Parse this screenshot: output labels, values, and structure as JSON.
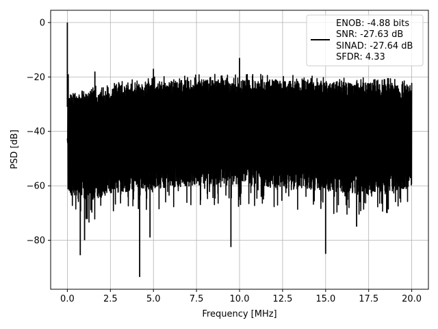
{
  "chart_data": {
    "type": "line",
    "title": "",
    "xlabel": "Frequency [MHz]",
    "ylabel": "PSD [dB]",
    "xlim": [
      -0.97,
      20.97
    ],
    "ylim": [
      -98,
      4.5
    ],
    "x_ticks": [
      0.0,
      2.5,
      5.0,
      7.5,
      10.0,
      12.5,
      15.0,
      17.5,
      20.0
    ],
    "x_tick_labels": [
      "0.0",
      "2.5",
      "5.0",
      "7.5",
      "10.0",
      "12.5",
      "15.0",
      "17.5",
      "20.0"
    ],
    "y_ticks": [
      0,
      -20,
      -40,
      -60,
      -80
    ],
    "y_tick_labels": [
      "0",
      "−20",
      "−40",
      "−60",
      "−80"
    ],
    "grid": true,
    "legend_position": "top-right",
    "legend_entries": [
      "ENOB: -4.88 bits",
      "SNR: -27.63 dB",
      "SINAD: -27.64 dB",
      "SFDR: 4.33"
    ],
    "series": [
      {
        "color": "#000000",
        "x_range": [
          0.0,
          20.0
        ],
        "upper_envelope": [
          [
            0.1,
            -26
          ],
          [
            1,
            -26
          ],
          [
            2.5,
            -24
          ],
          [
            5,
            -22
          ],
          [
            7.5,
            -21
          ],
          [
            10,
            -21
          ],
          [
            12.5,
            -21
          ],
          [
            15,
            -22
          ],
          [
            17.5,
            -22
          ],
          [
            20,
            -23
          ]
        ],
        "lower_envelope": [
          [
            0.1,
            -63
          ],
          [
            1,
            -66
          ],
          [
            2.5,
            -63
          ],
          [
            5,
            -61
          ],
          [
            7.5,
            -60
          ],
          [
            10,
            -60
          ],
          [
            12.5,
            -61
          ],
          [
            15,
            -62
          ],
          [
            17.5,
            -63
          ],
          [
            20,
            -61
          ]
        ],
        "spikes": [
          {
            "x": 0.0,
            "y": 0.0
          },
          {
            "x": 0.05,
            "y": -19
          },
          {
            "x": 1.6,
            "y": -18
          },
          {
            "x": 5.0,
            "y": -17
          },
          {
            "x": 10.0,
            "y": -13
          },
          {
            "x": 0.75,
            "y": -85.5
          },
          {
            "x": 1.0,
            "y": -80
          },
          {
            "x": 4.2,
            "y": -93.5
          },
          {
            "x": 4.8,
            "y": -79
          },
          {
            "x": 9.5,
            "y": -82.5
          },
          {
            "x": 15.0,
            "y": -85
          },
          {
            "x": 16.8,
            "y": -75
          }
        ]
      }
    ]
  }
}
